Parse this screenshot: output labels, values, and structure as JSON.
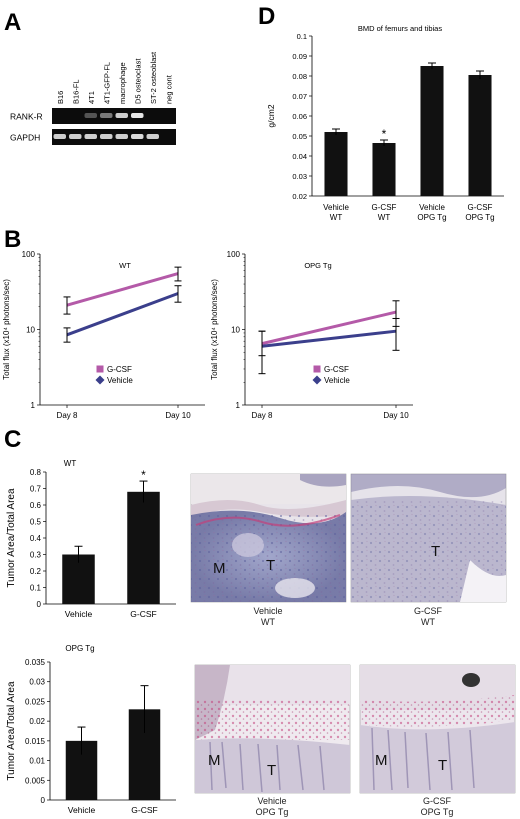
{
  "panels": {
    "A": {
      "letter": "A",
      "lanes": [
        "B16",
        "B16-FL",
        "4T1",
        "4T1-GFP-FL",
        "macrophage",
        "D5 osteoclast",
        "ST-2 osteoblast",
        "neg cont"
      ],
      "rows": [
        "RANK-R",
        "GAPDH"
      ],
      "bands": {
        "RANK-R": [
          0.05,
          0.05,
          0.35,
          0.5,
          0.85,
          0.95,
          0.05,
          0.0
        ],
        "GAPDH": [
          0.85,
          0.85,
          0.85,
          0.85,
          0.85,
          0.9,
          0.85,
          0.0
        ]
      }
    },
    "B": {
      "letter": "B"
    },
    "C": {
      "letter": "C"
    },
    "D": {
      "letter": "D"
    },
    "C_images": {
      "wt_vehicle": [
        "Vehicle",
        "WT"
      ],
      "wt_gcsf": [
        "G-CSF",
        "WT"
      ],
      "opg_vehicle": [
        "Vehicle",
        "OPG Tg"
      ],
      "opg_gcsf": [
        "G-CSF",
        "OPG Tg"
      ],
      "marrow_label": "M",
      "tumor_label": "T"
    }
  },
  "chart_data": [
    {
      "id": "D",
      "type": "bar",
      "title": "BMD of femurs and tibias",
      "ylabel": "g/cm2",
      "categories": [
        [
          "Vehicle",
          "WT"
        ],
        [
          "G-CSF",
          "WT"
        ],
        [
          "Vehicle",
          "OPG Tg"
        ],
        [
          "G-CSF",
          "OPG Tg"
        ]
      ],
      "values": [
        0.052,
        0.0465,
        0.085,
        0.0805
      ],
      "errors": [
        0.0015,
        0.0015,
        0.0015,
        0.002
      ],
      "annotations": [
        "",
        "*",
        "",
        ""
      ],
      "ylim": [
        0.02,
        0.1
      ],
      "yticks": [
        "0.02",
        "0.03",
        "0.04",
        "0.05",
        "0.06",
        "0.07",
        "0.08",
        "0.09",
        "0.1"
      ],
      "color": "#111111"
    },
    {
      "id": "B-WT",
      "type": "line",
      "title": "WT",
      "ylabel": "Total flux (x10⁴ photons/sec)",
      "yscale": "log",
      "ylim": [
        1,
        100
      ],
      "yticks": [
        "1",
        "10",
        "100"
      ],
      "x": [
        "Day 8",
        "Day 10"
      ],
      "series": [
        {
          "name": "G-CSF",
          "values": [
            21,
            55
          ],
          "errors": [
            [
              16,
              27
            ],
            [
              44,
              67
            ]
          ],
          "color": "#b45aa8",
          "marker": "square"
        },
        {
          "name": "Vehicle",
          "values": [
            8.5,
            30
          ],
          "errors": [
            [
              6.8,
              10.5
            ],
            [
              23,
              38
            ]
          ],
          "color": "#3b3f8c",
          "marker": "diamond"
        }
      ]
    },
    {
      "id": "B-OPG",
      "type": "line",
      "title": "OPG Tg",
      "ylabel": "Total flux (x10⁴ photons/sec)",
      "yscale": "log",
      "ylim": [
        1,
        100
      ],
      "yticks": [
        "1",
        "10",
        "100"
      ],
      "x": [
        "Day 8",
        "Day 10"
      ],
      "series": [
        {
          "name": "G-CSF",
          "values": [
            6.5,
            17
          ],
          "errors": [
            [
              4.5,
              9.5
            ],
            [
              11,
              24
            ]
          ],
          "color": "#b45aa8",
          "marker": "square"
        },
        {
          "name": "Vehicle",
          "values": [
            6,
            9.5
          ],
          "errors": [
            [
              2.6,
              9.5
            ],
            [
              5.3,
              14
            ]
          ],
          "color": "#3b3f8c",
          "marker": "diamond"
        }
      ]
    },
    {
      "id": "C-WT",
      "type": "bar",
      "title": "WT",
      "ylabel": "Tumor Area/Total Area",
      "categories": [
        "Vehicle",
        "G-CSF"
      ],
      "values": [
        0.3,
        0.68
      ],
      "errors": [
        0.05,
        0.065
      ],
      "annotations": [
        "",
        "*"
      ],
      "ylim": [
        0,
        0.8
      ],
      "yticks": [
        "0",
        "0.1",
        "0.2",
        "0.3",
        "0.4",
        "0.5",
        "0.6",
        "0.7",
        "0.8"
      ],
      "color": "#111111"
    },
    {
      "id": "C-OPG",
      "type": "bar",
      "title": "OPG Tg",
      "ylabel": "Tumor Area/Total Area",
      "categories": [
        "Vehicle",
        "G-CSF"
      ],
      "values": [
        0.015,
        0.023
      ],
      "errors": [
        0.0035,
        0.006
      ],
      "annotations": [
        "",
        ""
      ],
      "ylim": [
        0,
        0.035
      ],
      "yticks": [
        "0",
        "0.005",
        "0.01",
        "0.015",
        "0.02",
        "0.025",
        "0.03",
        "0.035"
      ],
      "color": "#111111"
    }
  ]
}
